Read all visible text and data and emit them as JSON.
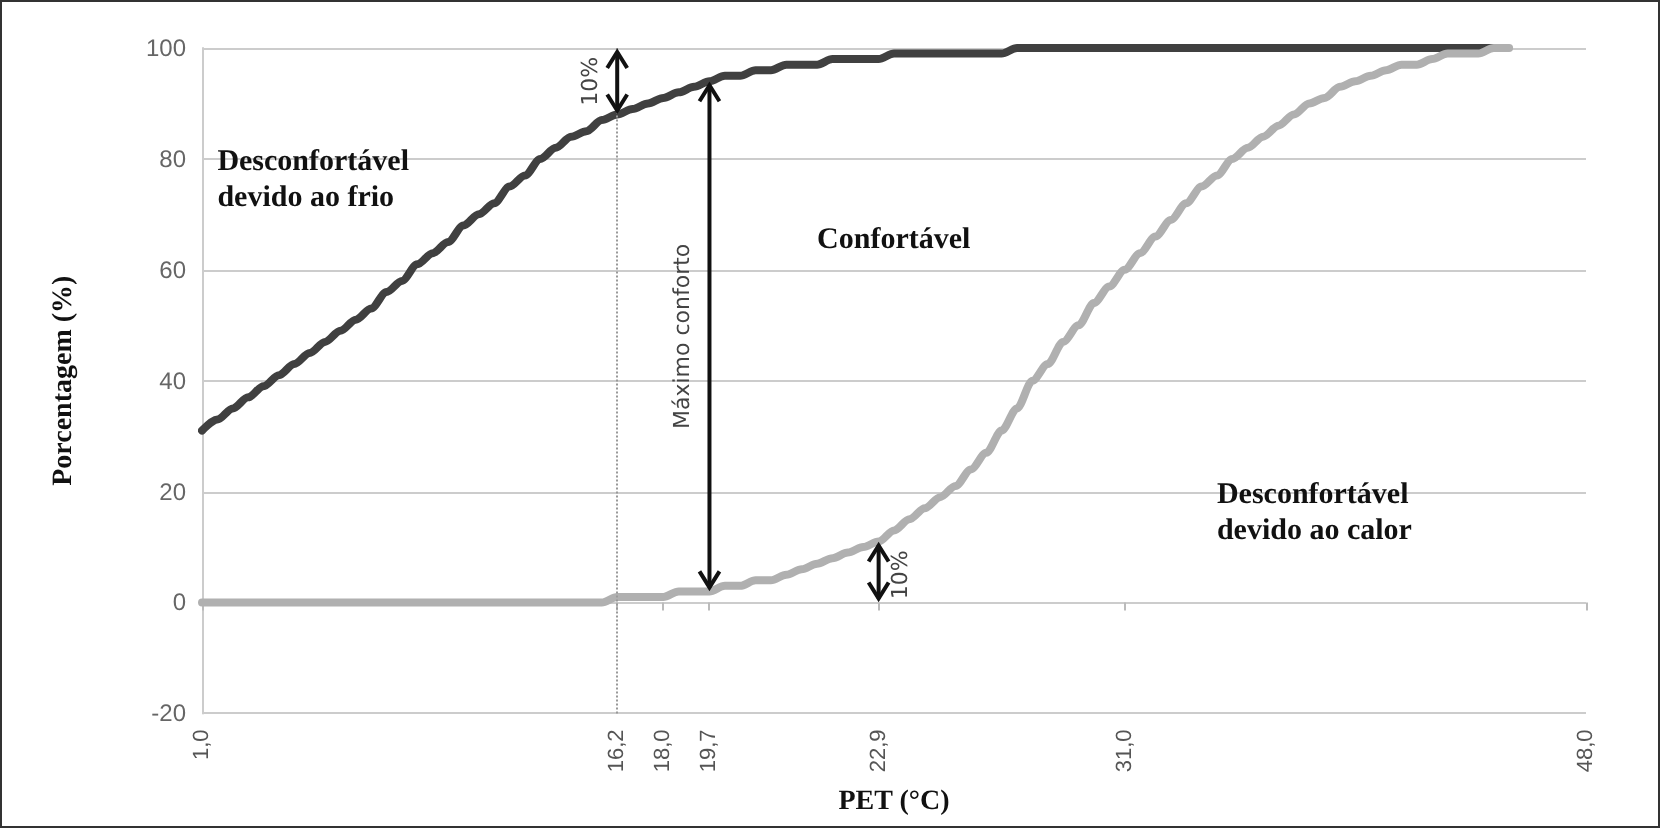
{
  "chart_data": {
    "type": "line",
    "xlabel": "PET (°C)",
    "ylabel": "Porcentagem (%)",
    "categories": [
      "1,0",
      null,
      null,
      null,
      null,
      null,
      null,
      null,
      null,
      null,
      null,
      null,
      null,
      null,
      null,
      null,
      null,
      null,
      null,
      null,
      null,
      null,
      null,
      null,
      null,
      null,
      null,
      "16,2",
      null,
      null,
      "18,0",
      null,
      null,
      "19,7",
      null,
      null,
      null,
      null,
      null,
      null,
      null,
      null,
      null,
      null,
      "22,9",
      null,
      null,
      null,
      null,
      null,
      null,
      null,
      null,
      null,
      null,
      null,
      null,
      null,
      null,
      null,
      "31,0",
      null,
      null,
      null,
      null,
      null,
      null,
      null,
      null,
      null,
      null,
      null,
      null,
      null,
      null,
      null,
      null,
      null,
      null,
      null,
      null,
      null,
      null,
      null,
      null,
      null,
      null,
      null,
      null,
      null,
      "48,0"
    ],
    "series": [
      {
        "color": "#404040",
        "values": [
          31,
          33,
          35,
          37,
          39,
          41,
          43,
          45,
          47,
          49,
          51,
          53,
          56,
          58,
          61,
          63,
          65,
          68,
          70,
          72,
          75,
          77,
          80,
          82,
          84,
          85,
          87,
          88,
          89,
          90,
          91,
          92,
          93,
          94,
          95,
          95,
          96,
          96,
          97,
          97,
          97,
          98,
          98,
          98,
          98,
          99,
          99,
          99,
          99,
          99,
          99,
          99,
          99,
          100,
          100,
          100,
          100,
          100,
          100,
          100,
          100,
          100,
          100,
          100,
          100,
          100,
          100,
          100,
          100,
          100,
          100,
          100,
          100,
          100,
          100,
          100,
          100,
          100,
          100,
          100,
          100,
          100,
          100,
          100,
          100,
          null,
          null,
          null,
          null,
          null,
          null
        ]
      },
      {
        "color": "#b0b0b0",
        "values": [
          0,
          0,
          0,
          0,
          0,
          0,
          0,
          0,
          0,
          0,
          0,
          0,
          0,
          0,
          0,
          0,
          0,
          0,
          0,
          0,
          0,
          0,
          0,
          0,
          0,
          0,
          0,
          1,
          1,
          1,
          1,
          2,
          2,
          2,
          3,
          3,
          4,
          4,
          5,
          6,
          7,
          8,
          9,
          10,
          11,
          13,
          15,
          17,
          19,
          21,
          24,
          27,
          31,
          35,
          40,
          43,
          47,
          50,
          54,
          57,
          60,
          63,
          66,
          69,
          72,
          75,
          77,
          80,
          82,
          84,
          86,
          88,
          90,
          91,
          93,
          94,
          95,
          96,
          97,
          97,
          98,
          99,
          99,
          99,
          100,
          100,
          null,
          null,
          null,
          null,
          null
        ]
      }
    ],
    "ylim": [
      -20,
      100
    ],
    "yticks": [
      -20,
      0,
      20,
      40,
      60,
      80,
      100
    ],
    "grid": "y",
    "marker": "none",
    "line_style": "solid",
    "ref_lines": [
      {
        "axis": "x",
        "value": "16,2",
        "line_style": "dotted",
        "color": "#999999"
      }
    ],
    "annotations": [
      "Desconfortável devido ao frio",
      "Confortável",
      "Desconfortável devido ao calor",
      "10%",
      "Máximo conforto",
      "10%"
    ]
  }
}
